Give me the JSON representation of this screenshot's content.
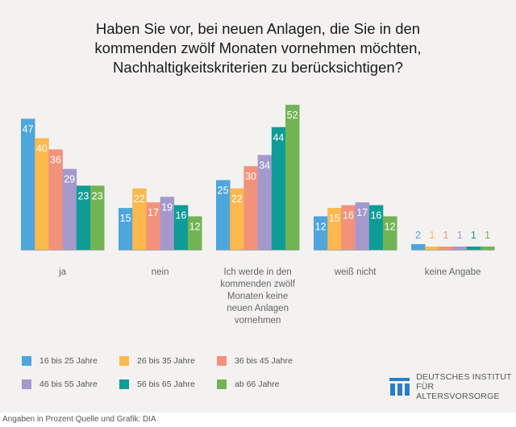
{
  "title": "Haben Sie vor, bei neuen Anlagen, die Sie in den kommenden zwölf Monaten vornehmen möchten, Nachhaltigkeitskriterien zu berücksichtigen?",
  "title_lines": [
    "Haben Sie vor, bei neuen Anlagen, die Sie in den",
    "kommenden zwölf Monaten vornehmen möchten,",
    "Nachhaltigkeitskriterien zu berücksichtigen?"
  ],
  "chart_data": {
    "type": "bar",
    "title": "Haben Sie vor, bei neuen Anlagen, die Sie in den kommenden zwölf Monaten vornehmen möchten, Nachhaltigkeitskriterien zu berücksichtigen?",
    "xlabel": "",
    "ylabel": "",
    "ylim": [
      0,
      52
    ],
    "grid": false,
    "legend_position": "bottom",
    "categories": [
      "ja",
      "nein",
      "Ich werde in den kommenden zwölf Monaten keine neuen Anlagen vornehmen",
      "weiß nicht",
      "keine Angabe"
    ],
    "category_label_lines": [
      [
        "ja"
      ],
      [
        "nein"
      ],
      [
        "Ich werde in den",
        "kommenden zwölf",
        "Monaten keine",
        "neuen Anlagen",
        "vornehmen"
      ],
      [
        "weiß nicht"
      ],
      [
        "keine Angabe"
      ]
    ],
    "series": [
      {
        "name": "16 bis 25 Jahre",
        "color": "#4ea6dc",
        "values": [
          47,
          15,
          25,
          12,
          2
        ]
      },
      {
        "name": "26 bis 35 Jahre",
        "color": "#fbb84d",
        "values": [
          40,
          22,
          22,
          15,
          1
        ]
      },
      {
        "name": "36 bis 45 Jahre",
        "color": "#f3927a",
        "values": [
          36,
          17,
          30,
          16,
          1
        ]
      },
      {
        "name": "46 bis 55 Jahre",
        "color": "#a599cc",
        "values": [
          29,
          19,
          34,
          17,
          1
        ]
      },
      {
        "name": "56 bis 65 Jahre",
        "color": "#0f9c96",
        "values": [
          23,
          16,
          44,
          16,
          1
        ]
      },
      {
        "name": "ab 66 Jahre",
        "color": "#72b454",
        "values": [
          23,
          12,
          52,
          12,
          1
        ]
      }
    ]
  },
  "footer": "Angaben in Prozent  Quelle und Grafik: DIA",
  "logo": {
    "line1": "DEUTSCHES INSTITUT",
    "line2": "FÜR ALTERSVORSORGE",
    "color": "#2a7fc6"
  }
}
